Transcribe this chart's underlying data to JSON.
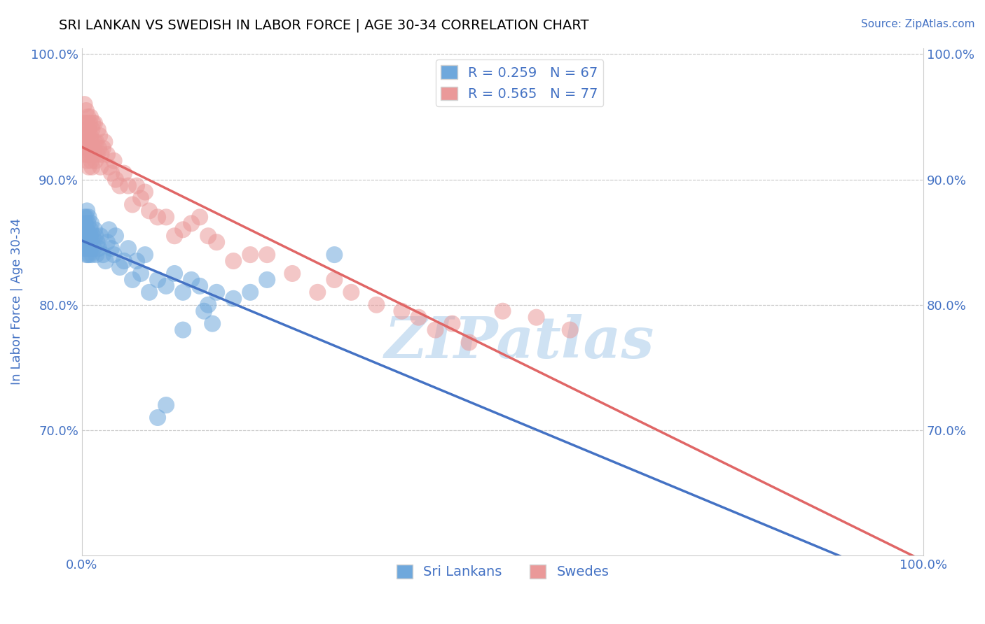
{
  "title": "SRI LANKAN VS SWEDISH IN LABOR FORCE | AGE 30-34 CORRELATION CHART",
  "source": "Source: ZipAtlas.com",
  "ylabel": "In Labor Force | Age 30-34",
  "xlim": [
    0.0,
    1.0
  ],
  "ylim": [
    0.6,
    1.005
  ],
  "xticks": [
    0.0,
    0.1,
    0.2,
    0.3,
    0.4,
    0.5,
    0.6,
    0.7,
    0.8,
    0.9,
    1.0
  ],
  "xticklabels": [
    "0.0%",
    "",
    "",
    "",
    "",
    "",
    "",
    "",
    "",
    "",
    "100.0%"
  ],
  "yticks": [
    0.7,
    0.8,
    0.9,
    1.0
  ],
  "yticklabels": [
    "70.0%",
    "80.0%",
    "90.0%",
    "100.0%"
  ],
  "sri_lankan_R": 0.259,
  "sri_lankan_N": 67,
  "swedish_R": 0.565,
  "swedish_N": 77,
  "sri_lankan_color": "#6fa8dc",
  "swedish_color": "#ea9999",
  "sri_lankan_line_color": "#4472c4",
  "swedish_line_color": "#e06666",
  "background_color": "#ffffff",
  "grid_color": "#cccccc",
  "title_color": "#000000",
  "axis_label_color": "#4472c4",
  "watermark_color": "#cfe2f3",
  "legend_label_color": "#4472c4",
  "sri_lankans_x": [
    0.002,
    0.002,
    0.003,
    0.003,
    0.004,
    0.004,
    0.004,
    0.005,
    0.005,
    0.005,
    0.005,
    0.006,
    0.006,
    0.006,
    0.007,
    0.007,
    0.007,
    0.008,
    0.008,
    0.009,
    0.009,
    0.01,
    0.01,
    0.01,
    0.011,
    0.011,
    0.012,
    0.013,
    0.014,
    0.015,
    0.016,
    0.017,
    0.018,
    0.02,
    0.022,
    0.025,
    0.028,
    0.03,
    0.032,
    0.035,
    0.038,
    0.04,
    0.045,
    0.05,
    0.055,
    0.06,
    0.065,
    0.07,
    0.075,
    0.08,
    0.09,
    0.1,
    0.11,
    0.12,
    0.13,
    0.14,
    0.15,
    0.16,
    0.18,
    0.2,
    0.22,
    0.3,
    0.12,
    0.145,
    0.155,
    0.09,
    0.1
  ],
  "sri_lankans_y": [
    0.845,
    0.86,
    0.855,
    0.87,
    0.85,
    0.865,
    0.855,
    0.84,
    0.86,
    0.855,
    0.87,
    0.845,
    0.86,
    0.875,
    0.85,
    0.865,
    0.84,
    0.855,
    0.87,
    0.85,
    0.84,
    0.845,
    0.86,
    0.855,
    0.85,
    0.865,
    0.84,
    0.855,
    0.845,
    0.86,
    0.855,
    0.84,
    0.85,
    0.845,
    0.855,
    0.84,
    0.835,
    0.85,
    0.86,
    0.845,
    0.84,
    0.855,
    0.83,
    0.835,
    0.845,
    0.82,
    0.835,
    0.825,
    0.84,
    0.81,
    0.82,
    0.815,
    0.825,
    0.81,
    0.82,
    0.815,
    0.8,
    0.81,
    0.805,
    0.81,
    0.82,
    0.84,
    0.78,
    0.795,
    0.785,
    0.71,
    0.72
  ],
  "swedes_x": [
    0.002,
    0.003,
    0.003,
    0.004,
    0.004,
    0.005,
    0.005,
    0.005,
    0.006,
    0.006,
    0.006,
    0.007,
    0.007,
    0.007,
    0.008,
    0.008,
    0.009,
    0.009,
    0.01,
    0.01,
    0.01,
    0.011,
    0.011,
    0.012,
    0.012,
    0.013,
    0.013,
    0.014,
    0.015,
    0.015,
    0.016,
    0.017,
    0.018,
    0.019,
    0.02,
    0.021,
    0.022,
    0.023,
    0.025,
    0.027,
    0.03,
    0.032,
    0.035,
    0.038,
    0.04,
    0.045,
    0.05,
    0.055,
    0.06,
    0.065,
    0.07,
    0.075,
    0.08,
    0.09,
    0.1,
    0.11,
    0.12,
    0.13,
    0.14,
    0.15,
    0.16,
    0.18,
    0.2,
    0.22,
    0.25,
    0.28,
    0.3,
    0.32,
    0.35,
    0.38,
    0.4,
    0.42,
    0.44,
    0.46,
    0.5,
    0.54,
    0.58
  ],
  "swedes_y": [
    0.93,
    0.945,
    0.96,
    0.92,
    0.935,
    0.925,
    0.94,
    0.955,
    0.915,
    0.93,
    0.945,
    0.92,
    0.935,
    0.95,
    0.91,
    0.94,
    0.925,
    0.945,
    0.92,
    0.935,
    0.95,
    0.915,
    0.93,
    0.91,
    0.94,
    0.925,
    0.945,
    0.92,
    0.93,
    0.945,
    0.915,
    0.93,
    0.92,
    0.94,
    0.925,
    0.935,
    0.91,
    0.92,
    0.925,
    0.93,
    0.92,
    0.91,
    0.905,
    0.915,
    0.9,
    0.895,
    0.905,
    0.895,
    0.88,
    0.895,
    0.885,
    0.89,
    0.875,
    0.87,
    0.87,
    0.855,
    0.86,
    0.865,
    0.87,
    0.855,
    0.85,
    0.835,
    0.84,
    0.84,
    0.825,
    0.81,
    0.82,
    0.81,
    0.8,
    0.795,
    0.79,
    0.78,
    0.785,
    0.77,
    0.795,
    0.79,
    0.78
  ]
}
